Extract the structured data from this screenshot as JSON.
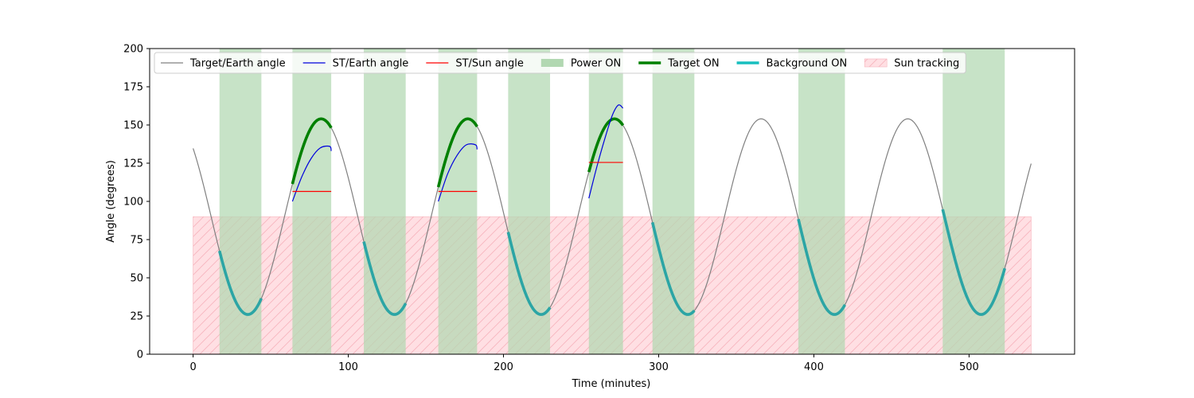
{
  "chart_data": {
    "type": "line",
    "xlabel": "Time (minutes)",
    "ylabel": "Angle (degrees)",
    "xlim": [
      -28,
      568
    ],
    "ylim": [
      0,
      200
    ],
    "xticks": [
      0,
      100,
      200,
      300,
      400,
      500
    ],
    "yticks": [
      0,
      25,
      50,
      75,
      100,
      125,
      150,
      175,
      200
    ],
    "legend_position": "top",
    "colors": {
      "target_earth": "#808080",
      "st_earth": "#0000dd",
      "st_sun": "#ff0000",
      "power_on": "#b2d8b2",
      "target_on": "#008000",
      "background_on": "#2ca5a5",
      "background_on_legend": "#17bfbf",
      "sun_tracking": "#ffdfe3",
      "sun_tracking_hatch": "#f7b4bd"
    },
    "legend": [
      {
        "key": "target_earth",
        "label": "Target/Earth angle",
        "kind": "line"
      },
      {
        "key": "st_earth",
        "label": "ST/Earth angle",
        "kind": "line"
      },
      {
        "key": "st_sun",
        "label": "ST/Sun angle",
        "kind": "line"
      },
      {
        "key": "power_on",
        "label": "Power ON",
        "kind": "patch"
      },
      {
        "key": "target_on",
        "label": "Target ON",
        "kind": "thick"
      },
      {
        "key": "background_on",
        "label": "Background ON",
        "kind": "thick"
      },
      {
        "key": "sun_tracking",
        "label": "Sun tracking",
        "kind": "hatch"
      }
    ],
    "target_earth_model": {
      "period": 94.5,
      "peak_x": 82.5,
      "min": 26,
      "max": 154,
      "x_range": [
        0,
        540
      ]
    },
    "power_on_spans": [
      [
        17,
        44
      ],
      [
        64,
        89
      ],
      [
        110,
        137
      ],
      [
        158,
        183
      ],
      [
        203,
        230
      ],
      [
        255,
        277
      ],
      [
        296,
        323
      ],
      [
        390,
        420
      ],
      [
        483,
        523
      ]
    ],
    "target_on_spans": [
      [
        64,
        89
      ],
      [
        158,
        183
      ],
      [
        255,
        277
      ]
    ],
    "background_on_spans": [
      [
        17,
        44
      ],
      [
        110,
        137
      ],
      [
        203,
        230
      ],
      [
        296,
        323
      ],
      [
        390,
        420
      ],
      [
        483,
        523
      ]
    ],
    "sun_tracking": {
      "x": [
        0,
        540
      ],
      "y": [
        0,
        90
      ]
    },
    "st_earth_segments": [
      {
        "x": [
          64,
          70,
          76,
          82,
          88,
          89
        ],
        "y": [
          100,
          116,
          128,
          135,
          136,
          133
        ]
      },
      {
        "x": [
          158,
          164,
          170,
          176,
          182,
          183
        ],
        "y": [
          100,
          118,
          130,
          137,
          137,
          134
        ]
      },
      {
        "x": [
          255,
          260,
          265,
          270,
          274,
          277
        ],
        "y": [
          102,
          122,
          140,
          156,
          163,
          161
        ]
      }
    ],
    "st_sun_segments": [
      {
        "x": [
          64,
          89
        ],
        "y": [
          106.5,
          106.5
        ]
      },
      {
        "x": [
          158,
          183
        ],
        "y": [
          106.5,
          106.5
        ]
      },
      {
        "x": [
          255,
          277
        ],
        "y": [
          125.5,
          125.5
        ]
      }
    ]
  }
}
